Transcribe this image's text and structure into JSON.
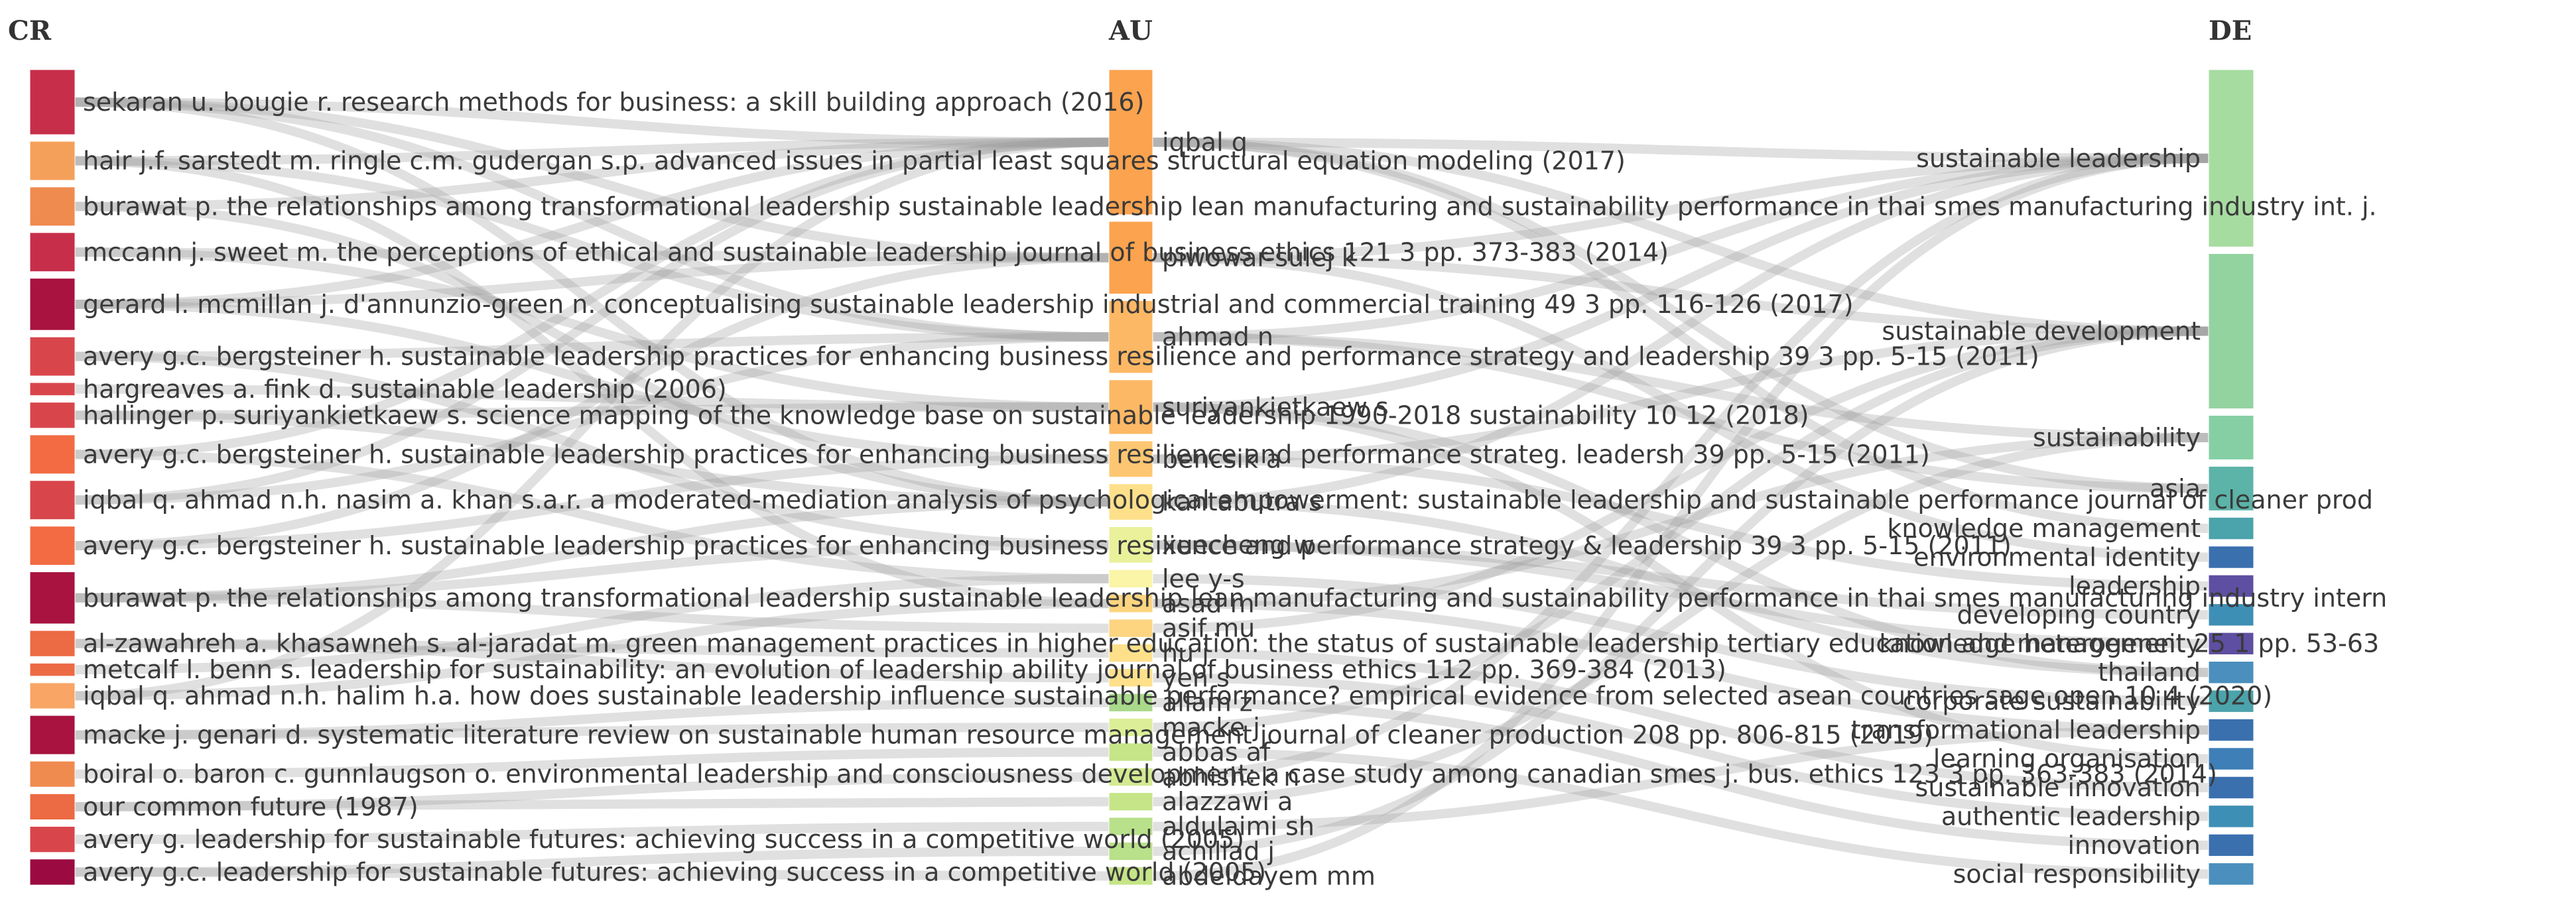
{
  "columns": {
    "cr": "CR",
    "au": "AU",
    "de": "DE"
  },
  "cr_nodes": [
    {
      "label": "sekaran u. bougie r. research methods for business: a skill building approach (2016)",
      "color": "#c72e4a",
      "weight": 5
    },
    {
      "label": "hair j.f. sarstedt m. ringle c.m. gudergan s.p. advanced issues in partial least squares structural equation modeling (2017)",
      "color": "#f5a05a",
      "weight": 3
    },
    {
      "label": "burawat p. the relationships among transformational leadership sustainable leadership lean manufacturing and sustainability performance in thai smes manufacturing industry int. j.",
      "color": "#f08b50",
      "weight": 3
    },
    {
      "label": "mccann j. sweet m. the perceptions of ethical and sustainable leadership journal of business ethics 121 3 pp. 373-383 (2014)",
      "color": "#c72e4a",
      "weight": 3
    },
    {
      "label": "gerard l. mcmillan j. d'annunzio-green n. conceptualising sustainable leadership industrial and commercial training 49 3 pp. 116-126 (2017)",
      "color": "#a8133f",
      "weight": 4
    },
    {
      "label": "avery g.c. bergsteiner h. sustainable leadership practices for enhancing business resilience and performance strategy and leadership 39 3 pp. 5-15 (2011)",
      "color": "#d8464b",
      "weight": 3
    },
    {
      "label": "hargreaves a. fink d. sustainable leadership (2006)",
      "color": "#d8464b",
      "weight": 1
    },
    {
      "label": "hallinger p. suriyankietkaew s. science mapping of the knowledge base on sustainable leadership 1990-2018 sustainability 10 12 (2018)",
      "color": "#d8464b",
      "weight": 2
    },
    {
      "label": "avery g.c. bergsteiner h. sustainable leadership practices for enhancing business resilience and performance strateg. leadersh 39 pp. 5-15 (2011)",
      "color": "#f26b43",
      "weight": 3
    },
    {
      "label": "iqbal q. ahmad n.h. nasim a. khan s.a.r. a moderated-mediation analysis of psychological empowerment: sustainable leadership and sustainable performance journal of cleaner prod",
      "color": "#d8464b",
      "weight": 3
    },
    {
      "label": "avery g.c. bergsteiner h. sustainable leadership practices for enhancing business resilience and performance strategy & leadership 39 3 pp. 5-15 (2011)",
      "color": "#f26b43",
      "weight": 3
    },
    {
      "label": "burawat p. the relationships among transformational leadership sustainable leadership lean manufacturing and sustainability performance in thai smes manufacturing industry intern",
      "color": "#a8133f",
      "weight": 4
    },
    {
      "label": "al-zawahreh a. khasawneh s. al-jaradat m. green management practices in higher education: the status of sustainable leadership tertiary education and management 25 1 pp. 53-63",
      "color": "#ec6a44",
      "weight": 2
    },
    {
      "label": "metcalf l. benn s. leadership for sustainability: an evolution of leadership ability journal of business ethics 112 pp. 369-384 (2013)",
      "color": "#ec6a44",
      "weight": 1
    },
    {
      "label": "iqbal q. ahmad n.h. halim h.a. how does sustainable leadership influence sustainable performance? empirical evidence from selected asean countries sage open 10 4 (2020)",
      "color": "#f8a566",
      "weight": 2
    },
    {
      "label": "macke j. genari d. systematic literature review on sustainable human resource management journal of cleaner production 208 pp. 806-815 (2019)",
      "color": "#a8133f",
      "weight": 3
    },
    {
      "label": "boiral o. baron c. gunnlaugson o. environmental leadership and consciousness development: a case study among canadian smes j. bus. ethics 123 3 pp. 363-383 (2014)",
      "color": "#f08b50",
      "weight": 2
    },
    {
      "label": "our common future (1987)",
      "color": "#ec6a44",
      "weight": 2
    },
    {
      "label": "avery g. leadership for sustainable futures: achieving success in a competitive world (2005)",
      "color": "#d8464b",
      "weight": 2
    },
    {
      "label": "avery g.c. leadership for sustainable futures: achieving success in a competitive world (2005)",
      "color": "#9b0a40",
      "weight": 2
    }
  ],
  "au_nodes": [
    {
      "label": "iqbal q",
      "color": "#fba34f",
      "weight": 8
    },
    {
      "label": "piwowar-sulej k",
      "color": "#fba34f",
      "weight": 4
    },
    {
      "label": "ahmad n",
      "color": "#fdb865",
      "weight": 4
    },
    {
      "label": "suriyankietkaew s",
      "color": "#fdb865",
      "weight": 3
    },
    {
      "label": "bencsik a",
      "color": "#fdc672",
      "weight": 2
    },
    {
      "label": "kantabutra s",
      "color": "#fee08b",
      "weight": 2
    },
    {
      "label": "xuecheng w",
      "color": "#eaf19b",
      "weight": 2
    },
    {
      "label": "lee y-s",
      "color": "#fbf5a8",
      "weight": 1
    },
    {
      "label": "asad m",
      "color": "#fdd580",
      "weight": 1
    },
    {
      "label": "asif mu",
      "color": "#fdd580",
      "weight": 1
    },
    {
      "label": "hu j",
      "color": "#fee08b",
      "weight": 1
    },
    {
      "label": "yen s",
      "color": "#fee08b",
      "weight": 1
    },
    {
      "label": "allam z",
      "color": "#a9d98b",
      "weight": 1
    },
    {
      "label": "macke j",
      "color": "#dcee97",
      "weight": 1
    },
    {
      "label": "abbas af",
      "color": "#c5e588",
      "weight": 1
    },
    {
      "label": "abhishek n",
      "color": "#d3ea92",
      "weight": 1
    },
    {
      "label": "alazzawi a",
      "color": "#c5e588",
      "weight": 1
    },
    {
      "label": "aldulaimi sh",
      "color": "#b9e08a",
      "weight": 1
    },
    {
      "label": "achillad j",
      "color": "#b9e08a",
      "weight": 1
    },
    {
      "label": "abdeldayem mm",
      "color": "#c5e588",
      "weight": 1
    }
  ],
  "de_nodes": [
    {
      "label": "sustainable leadership",
      "color": "#a7dca1",
      "weight": 8
    },
    {
      "label": "sustainable development",
      "color": "#93d3a0",
      "weight": 7
    },
    {
      "label": "sustainability",
      "color": "#86cfa5",
      "weight": 2
    },
    {
      "label": "asia",
      "color": "#5cb3a8",
      "weight": 2
    },
    {
      "label": "knowledge management",
      "color": "#4ba3ab",
      "weight": 1
    },
    {
      "label": "environmental identity",
      "color": "#3a70ae",
      "weight": 1
    },
    {
      "label": "leadership",
      "color": "#5e4fa2",
      "weight": 1
    },
    {
      "label": "developing country",
      "color": "#3e8fb5",
      "weight": 1
    },
    {
      "label": "knowledge heterogeneity",
      "color": "#5e4fa2",
      "weight": 1
    },
    {
      "label": "thailand",
      "color": "#4a8fbd",
      "weight": 1
    },
    {
      "label": "corporate sustainability",
      "color": "#4ba3ab",
      "weight": 1
    },
    {
      "label": "transformational leadership",
      "color": "#3a70ae",
      "weight": 1
    },
    {
      "label": "learning organisation",
      "color": "#3e7fb7",
      "weight": 1
    },
    {
      "label": "sustainable innovation",
      "color": "#3a70ae",
      "weight": 1
    },
    {
      "label": "authentic leadership",
      "color": "#3e8fb5",
      "weight": 1
    },
    {
      "label": "innovation",
      "color": "#3a70ae",
      "weight": 1
    },
    {
      "label": "social responsibility",
      "color": "#4a8fbd",
      "weight": 1
    }
  ],
  "links_cr_au": [
    [
      0,
      0
    ],
    [
      0,
      1
    ],
    [
      0,
      2
    ],
    [
      0,
      5
    ],
    [
      1,
      0
    ],
    [
      1,
      2
    ],
    [
      1,
      8
    ],
    [
      2,
      0
    ],
    [
      2,
      5
    ],
    [
      3,
      1
    ],
    [
      3,
      3
    ],
    [
      4,
      0
    ],
    [
      4,
      1
    ],
    [
      4,
      4
    ],
    [
      5,
      2
    ],
    [
      5,
      6
    ],
    [
      6,
      3
    ],
    [
      7,
      3
    ],
    [
      7,
      5
    ],
    [
      8,
      0
    ],
    [
      8,
      7
    ],
    [
      9,
      0
    ],
    [
      9,
      2
    ],
    [
      10,
      1
    ],
    [
      10,
      4
    ],
    [
      11,
      5
    ],
    [
      11,
      6
    ],
    [
      11,
      9
    ],
    [
      12,
      10
    ],
    [
      12,
      11
    ],
    [
      13,
      7
    ],
    [
      14,
      0
    ],
    [
      14,
      8
    ],
    [
      15,
      13
    ],
    [
      15,
      12
    ],
    [
      16,
      14
    ],
    [
      17,
      15
    ],
    [
      17,
      16
    ],
    [
      18,
      17
    ],
    [
      19,
      18
    ],
    [
      19,
      19
    ]
  ],
  "links_au_de": [
    [
      0,
      0
    ],
    [
      0,
      1
    ],
    [
      0,
      3
    ],
    [
      0,
      4
    ],
    [
      1,
      0
    ],
    [
      1,
      1
    ],
    [
      1,
      5
    ],
    [
      2,
      0
    ],
    [
      2,
      2
    ],
    [
      2,
      3
    ],
    [
      3,
      0
    ],
    [
      3,
      9
    ],
    [
      3,
      12
    ],
    [
      4,
      1
    ],
    [
      4,
      6
    ],
    [
      5,
      0
    ],
    [
      5,
      9
    ],
    [
      6,
      7
    ],
    [
      6,
      8
    ],
    [
      7,
      10
    ],
    [
      8,
      2
    ],
    [
      8,
      11
    ],
    [
      9,
      1
    ],
    [
      10,
      13
    ],
    [
      11,
      14
    ],
    [
      12,
      15
    ],
    [
      13,
      1
    ],
    [
      14,
      16
    ],
    [
      15,
      0
    ],
    [
      16,
      2
    ],
    [
      17,
      11
    ],
    [
      18,
      1
    ],
    [
      19,
      0
    ]
  ]
}
